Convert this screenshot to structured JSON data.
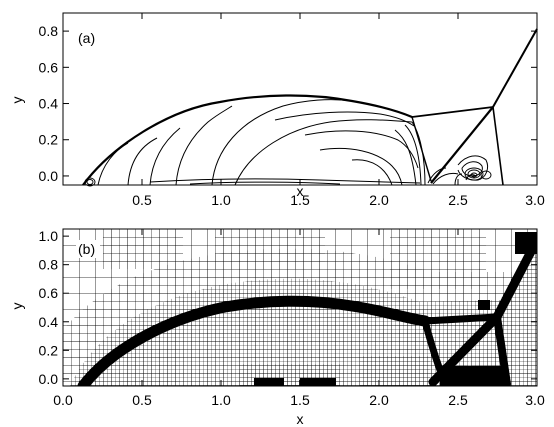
{
  "figure": {
    "panels": [
      {
        "label": "(a)",
        "xlabel": "x",
        "ylabel": "y",
        "xticks": [
          "0.5",
          "1.0",
          "1.5",
          "2.0",
          "2.5",
          "3.0"
        ],
        "yticks": [
          "0.0",
          "0.2",
          "0.4",
          "0.6",
          "0.8"
        ]
      },
      {
        "label": "(b)",
        "xlabel": "x",
        "ylabel": "y",
        "xticks": [
          "0.0",
          "0.5",
          "1.0",
          "1.5",
          "2.0",
          "2.5",
          "3.0"
        ],
        "yticks": [
          "0.0",
          "0.2",
          "0.4",
          "0.6",
          "0.8",
          "1.0"
        ]
      }
    ]
  }
}
